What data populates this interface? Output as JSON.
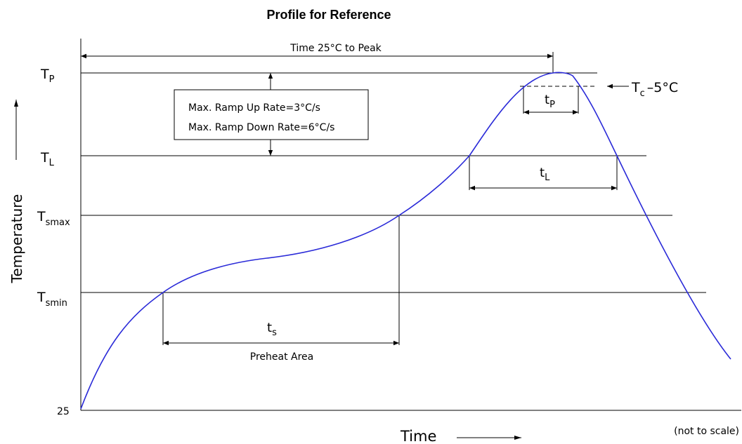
{
  "title": "Profile for Reference",
  "axes": {
    "y_label": "Temperature",
    "x_label": "Time",
    "origin_label": "25"
  },
  "levels": {
    "tp": {
      "main": "T",
      "sub": "P"
    },
    "tl": {
      "main": "T",
      "sub": "L"
    },
    "tsmax": {
      "main": "T",
      "sub": "smax"
    },
    "tsmin": {
      "main": "T",
      "sub": "smin"
    }
  },
  "annotations": {
    "time_to_peak": "Time 25°C to Peak",
    "ramp_up": "Max. Ramp Up Rate=3°C/s",
    "ramp_down": "Max. Ramp Down Rate=6°C/s",
    "tc_main": "T",
    "tc_sub": "c",
    "tc_suffix": "–5°C",
    "tp_main": "t",
    "tp_sub": "P",
    "tl_main": "t",
    "tl_sub": "L",
    "ts_main": "t",
    "ts_sub": "s",
    "preheat": "Preheat Area",
    "not_to_scale": "(not to scale)"
  },
  "colors": {
    "curve": "#2a2ad8",
    "lines": "#000000"
  }
}
